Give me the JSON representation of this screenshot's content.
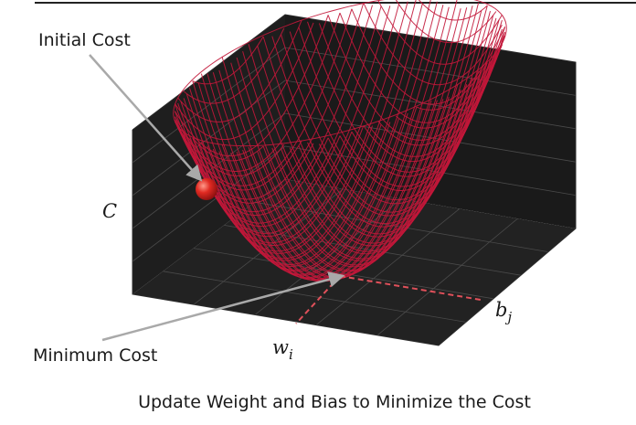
{
  "labels": {
    "initial_cost": "Initial Cost",
    "minimum_cost": "Minimum Cost",
    "axis_cost": "C",
    "axis_weight": "w",
    "axis_weight_sub": "i",
    "axis_bias": "b",
    "axis_bias_sub": "j",
    "caption": "Update Weight and Bias to Minimize the Cost"
  },
  "colors": {
    "box": "#1e1e1e",
    "box_edge": "#2c2c2c",
    "grid": "#4a4a4a",
    "mesh": "#c2173a",
    "ball": "#d42020",
    "arrow": "#a9a9a9",
    "dashed": "#e0505a"
  },
  "surface": {
    "function": "paraboloid",
    "mesh_lines_per_axis": 40
  }
}
